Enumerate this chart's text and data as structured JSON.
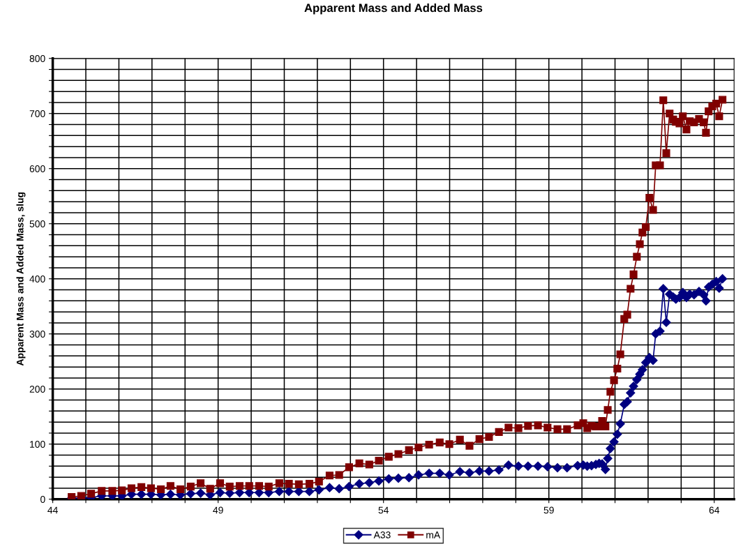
{
  "chart_data": {
    "type": "line",
    "title": "Apparent Mass and Added Mass",
    "ylabel": "Apparent Mass and Added Mass, slug",
    "x": [
      44.57,
      44.86,
      45.16,
      45.48,
      45.8,
      46.09,
      46.38,
      46.68,
      46.97,
      47.27,
      47.56,
      47.86,
      48.17,
      48.47,
      48.76,
      49.06,
      49.35,
      49.65,
      49.94,
      50.24,
      50.53,
      50.85,
      51.14,
      51.44,
      51.76,
      52.05,
      52.37,
      52.66,
      52.96,
      53.27,
      53.57,
      53.86,
      54.16,
      54.45,
      54.77,
      55.06,
      55.38,
      55.7,
      55.99,
      56.31,
      56.6,
      56.9,
      57.19,
      57.49,
      57.78,
      58.08,
      58.37,
      58.67,
      58.96,
      59.26,
      59.55,
      59.87,
      60.04,
      60.16,
      60.29,
      60.42,
      60.52,
      60.61,
      60.71,
      60.78,
      60.86,
      60.97,
      61.07,
      61.16,
      61.28,
      61.37,
      61.47,
      61.56,
      61.66,
      61.75,
      61.83,
      61.93,
      62.04,
      62.15,
      62.23,
      62.36,
      62.46,
      62.55,
      62.65,
      62.76,
      62.84,
      62.95,
      63.05,
      63.16,
      63.26,
      63.39,
      63.54,
      63.68,
      63.75,
      63.83,
      63.94,
      64.06,
      64.15,
      64.25
    ],
    "series": [
      {
        "name": "A33",
        "color": "#000080",
        "marker": "diamond",
        "values": [
          2,
          2,
          3,
          6,
          6,
          6,
          9,
          9,
          9,
          8,
          9,
          8,
          10,
          11,
          8,
          12,
          11,
          12,
          12,
          12,
          12,
          14,
          14,
          14,
          14,
          17,
          21,
          19,
          23,
          28,
          30,
          33,
          37,
          38,
          39,
          44,
          47,
          47,
          44,
          50,
          48,
          51,
          51,
          53,
          62,
          60,
          60,
          60,
          59,
          57,
          57,
          61,
          62,
          60,
          61,
          63,
          65,
          64,
          54,
          74,
          92,
          104,
          118,
          137,
          172,
          177,
          193,
          205,
          217,
          227,
          235,
          248,
          257,
          252,
          300,
          305,
          382,
          321,
          372,
          367,
          363,
          366,
          375,
          366,
          372,
          371,
          377,
          371,
          360,
          385,
          390,
          395,
          383,
          400
        ]
      },
      {
        "name": "mA",
        "color": "#800000",
        "marker": "square",
        "values": [
          4,
          6,
          10,
          15,
          15,
          16,
          20,
          22,
          20,
          18,
          24,
          18,
          23,
          29,
          19,
          29,
          23,
          24,
          24,
          24,
          23,
          29,
          28,
          27,
          28,
          32,
          43,
          44,
          58,
          65,
          63,
          70,
          77,
          82,
          89,
          94,
          99,
          103,
          100,
          108,
          97,
          109,
          113,
          122,
          130,
          129,
          133,
          134,
          130,
          127,
          127,
          134,
          138,
          129,
          133,
          132,
          132,
          142,
          132,
          162,
          195,
          216,
          237,
          263,
          327,
          335,
          382,
          408,
          440,
          463,
          484,
          494,
          547,
          525,
          606,
          606,
          724,
          628,
          700,
          689,
          685,
          682,
          695,
          671,
          686,
          684,
          690,
          684,
          665,
          704,
          713,
          718,
          695,
          725
        ]
      }
    ],
    "xlim": [
      44,
      64.6
    ],
    "xticks": [
      44,
      {
        "value": 45,
        "label": null
      },
      {
        "value": 46,
        "label": null
      },
      {
        "value": 47,
        "label": null
      },
      {
        "value": 48,
        "label": null
      },
      49,
      {
        "value": 50,
        "label": null
      },
      {
        "value": 51,
        "label": null
      },
      {
        "value": 52,
        "label": null
      },
      {
        "value": 53,
        "label": null
      },
      54,
      {
        "value": 55,
        "label": null
      },
      {
        "value": 56,
        "label": null
      },
      {
        "value": 57,
        "label": null
      },
      {
        "value": 58,
        "label": null
      },
      59,
      {
        "value": 60,
        "label": null
      },
      {
        "value": 61,
        "label": null
      },
      {
        "value": 62,
        "label": null
      },
      {
        "value": 63,
        "label": null
      },
      64
    ],
    "ylim": [
      0,
      800
    ],
    "yticks": [
      0,
      {
        "value": 20,
        "label": null
      },
      {
        "value": 40,
        "label": null
      },
      {
        "value": 60,
        "label": null
      },
      {
        "value": 80,
        "label": null
      },
      100,
      {
        "value": 120,
        "label": null
      },
      {
        "value": 140,
        "label": null
      },
      {
        "value": 160,
        "label": null
      },
      {
        "value": 180,
        "label": null
      },
      200,
      {
        "value": 220,
        "label": null
      },
      {
        "value": 240,
        "label": null
      },
      {
        "value": 260,
        "label": null
      },
      {
        "value": 280,
        "label": null
      },
      300,
      {
        "value": 320,
        "label": null
      },
      {
        "value": 340,
        "label": null
      },
      {
        "value": 360,
        "label": null
      },
      {
        "value": 380,
        "label": null
      },
      400,
      {
        "value": 420,
        "label": null
      },
      {
        "value": 440,
        "label": null
      },
      {
        "value": 460,
        "label": null
      },
      {
        "value": 480,
        "label": null
      },
      500,
      {
        "value": 520,
        "label": null
      },
      {
        "value": 540,
        "label": null
      },
      {
        "value": 560,
        "label": null
      },
      {
        "value": 580,
        "label": null
      },
      600,
      {
        "value": 620,
        "label": null
      },
      {
        "value": 640,
        "label": null
      },
      {
        "value": 660,
        "label": null
      },
      {
        "value": 680,
        "label": null
      },
      700,
      {
        "value": 720,
        "label": null
      },
      {
        "value": 740,
        "label": null
      },
      {
        "value": 760,
        "label": null
      },
      {
        "value": 780,
        "label": null
      },
      800
    ],
    "grid": true,
    "legend": "bottom",
    "line_style": "solid"
  }
}
